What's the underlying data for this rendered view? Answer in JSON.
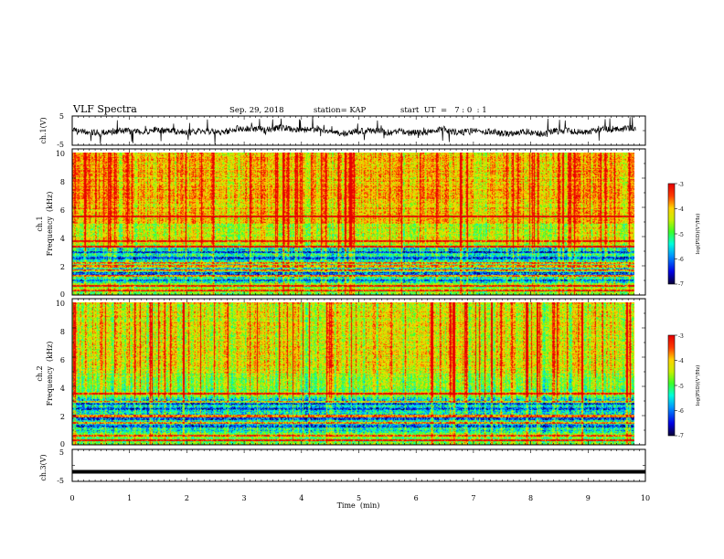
{
  "header": {
    "title": "VLF Spectra",
    "date": "Sep. 29, 2018",
    "station": "station= KAP",
    "start": "start  UT  =   7 : 0  : 1"
  },
  "chart_data": [
    {
      "type": "line",
      "ylabel": "ch.1(V)",
      "ylim": [
        -5,
        5
      ],
      "yticks": [
        "5",
        "-5"
      ],
      "xlim": [
        0,
        10
      ],
      "color": "#000000",
      "description_values": "noisy waveform between about -2 and 2 V with occasional spikes"
    },
    {
      "type": "heatmap",
      "ylabel_line1": "ch.1",
      "ylabel_line2": "Frequency  (kHz)",
      "ylim": [
        0,
        10
      ],
      "yticks": [
        "0",
        "2",
        "4",
        "6",
        "8",
        "10"
      ],
      "xlim": [
        0,
        9.83
      ],
      "colorbar": {
        "label": "log(PSD)(V²/Hz)",
        "ticks": [
          "-3",
          "-4",
          "-5",
          "-6",
          "-7"
        ],
        "range": [
          -7,
          -3
        ]
      },
      "bands_khz": [
        0.3,
        0.6,
        1.3,
        1.7,
        2.0,
        2.2,
        3.4,
        3.8,
        5.5
      ],
      "low_power_rows_khz": [
        1.0,
        1.5,
        2.6,
        3.0
      ]
    },
    {
      "type": "heatmap",
      "ylabel_line1": "ch.2",
      "ylabel_line2": "Frequency  (kHz)",
      "ylim": [
        0,
        10
      ],
      "yticks": [
        "0",
        "2",
        "4",
        "6",
        "8",
        "10"
      ],
      "xlim": [
        0,
        9.83
      ],
      "colorbar": {
        "label": "log(PSD)(V²/Hz)",
        "ticks": [
          "-3",
          "-4",
          "-5",
          "-6",
          "-7"
        ],
        "range": [
          -7,
          -3
        ]
      },
      "bands_khz": [
        0.3,
        0.6,
        1.5,
        2.0,
        3.0,
        3.6
      ],
      "low_power_rows_khz": [
        1.3,
        1.8,
        2.5,
        2.9
      ]
    },
    {
      "type": "line",
      "ylabel": "ch.3(V)",
      "ylim": [
        -5,
        5
      ],
      "yticks": [
        "5",
        "-5"
      ],
      "xlim": [
        0,
        10
      ],
      "constant_value": -2,
      "color": "#000000"
    }
  ],
  "xaxis": {
    "label": "Time  (min)",
    "ticks": [
      "0",
      "1",
      "2",
      "3",
      "4",
      "5",
      "6",
      "7",
      "8",
      "9",
      "10"
    ],
    "range": [
      0,
      10
    ]
  }
}
